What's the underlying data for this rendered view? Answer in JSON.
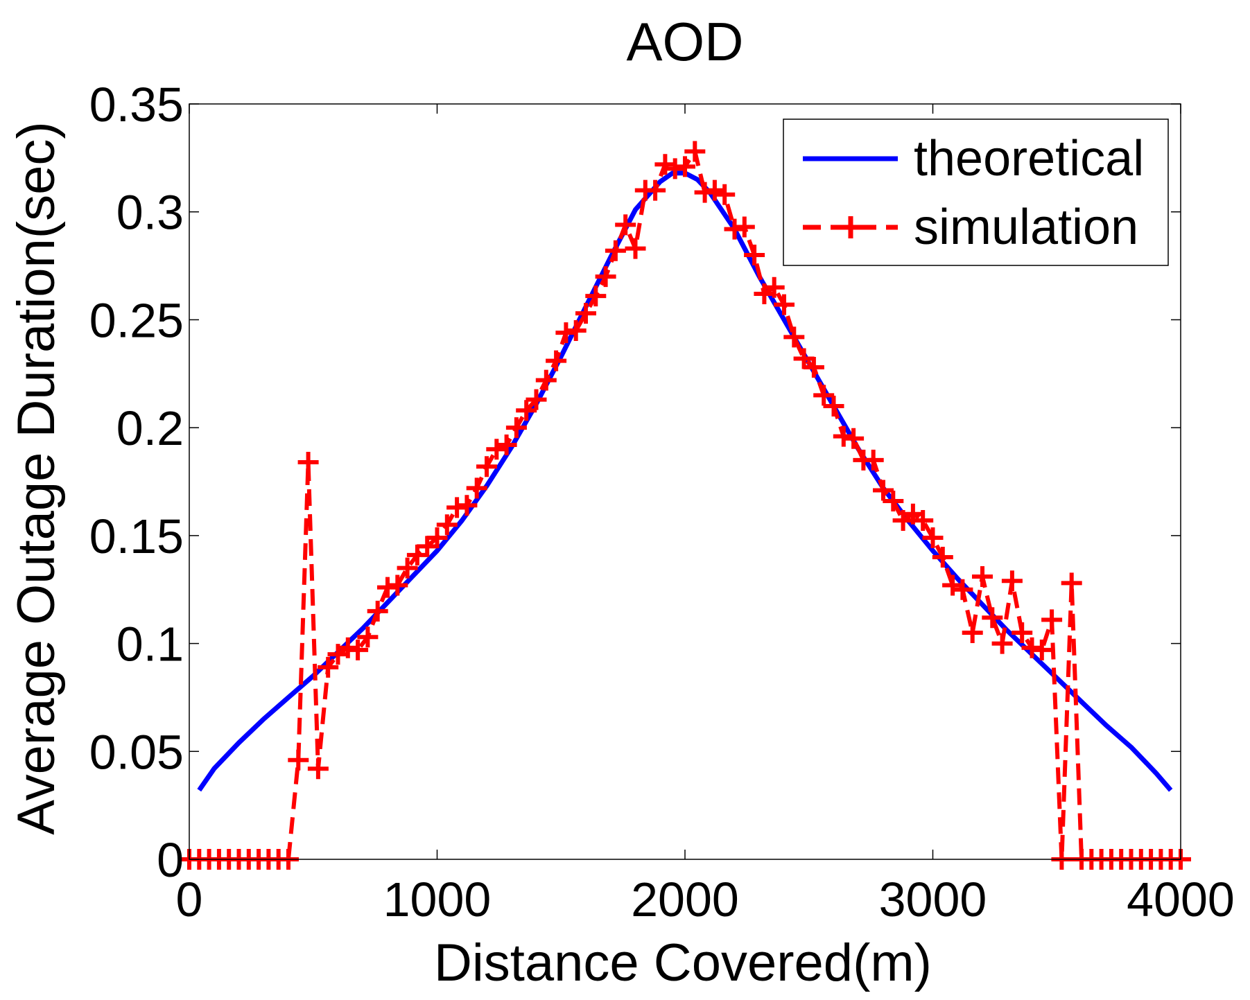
{
  "chart_data": {
    "type": "line",
    "title": "AOD",
    "xlabel": "Distance Covered(m)",
    "ylabel": "Average Outage Duration(sec)",
    "xlim": [
      0,
      4000
    ],
    "ylim": [
      0,
      0.35
    ],
    "x_ticks": [
      0,
      1000,
      2000,
      3000,
      4000
    ],
    "x_tick_labels": [
      "0",
      "1000",
      "2000",
      "3000",
      "4000"
    ],
    "y_ticks": [
      0,
      0.05,
      0.1,
      0.15,
      0.2,
      0.25,
      0.3,
      0.35
    ],
    "y_tick_labels": [
      "0",
      "0.05",
      "0.1",
      "0.15",
      "0.2",
      "0.25",
      "0.3",
      "0.35"
    ],
    "grid": false,
    "legend": {
      "position": "top-right"
    },
    "series": [
      {
        "name": "theoretical",
        "color": "#0000ff",
        "style": "solid",
        "marker": "none",
        "x": [
          40,
          100,
          200,
          300,
          400,
          500,
          600,
          700,
          800,
          900,
          1000,
          1100,
          1200,
          1300,
          1400,
          1500,
          1600,
          1700,
          1800,
          1900,
          1950,
          2000,
          2050,
          2100,
          2200,
          2300,
          2400,
          2500,
          2600,
          2700,
          2800,
          2900,
          3000,
          3100,
          3200,
          3300,
          3400,
          3500,
          3600,
          3700,
          3800,
          3850,
          3900,
          3960
        ],
        "y": [
          0.032,
          0.042,
          0.054,
          0.065,
          0.075,
          0.085,
          0.096,
          0.107,
          0.119,
          0.131,
          0.143,
          0.157,
          0.173,
          0.191,
          0.211,
          0.233,
          0.256,
          0.279,
          0.301,
          0.314,
          0.318,
          0.318,
          0.315,
          0.309,
          0.292,
          0.27,
          0.25,
          0.23,
          0.21,
          0.19,
          0.172,
          0.157,
          0.143,
          0.13,
          0.118,
          0.106,
          0.095,
          0.084,
          0.073,
          0.062,
          0.052,
          0.046,
          0.04,
          0.032
        ]
      },
      {
        "name": "simulation",
        "color": "#ff0000",
        "style": "dashed",
        "marker": "+",
        "x": [
          0,
          40,
          80,
          120,
          160,
          200,
          240,
          280,
          320,
          360,
          400,
          440,
          480,
          520,
          560,
          600,
          640,
          680,
          720,
          760,
          800,
          840,
          880,
          920,
          960,
          1000,
          1040,
          1080,
          1120,
          1160,
          1200,
          1240,
          1280,
          1320,
          1360,
          1400,
          1440,
          1480,
          1520,
          1560,
          1600,
          1640,
          1680,
          1720,
          1760,
          1800,
          1840,
          1880,
          1920,
          1960,
          2000,
          2040,
          2080,
          2120,
          2160,
          2200,
          2240,
          2280,
          2320,
          2360,
          2400,
          2440,
          2480,
          2520,
          2560,
          2600,
          2640,
          2680,
          2720,
          2760,
          2800,
          2840,
          2880,
          2920,
          2960,
          3000,
          3040,
          3080,
          3120,
          3160,
          3200,
          3240,
          3280,
          3320,
          3360,
          3400,
          3440,
          3480,
          3520,
          3560,
          3600,
          3640,
          3680,
          3720,
          3760,
          3800,
          3840,
          3880,
          3920,
          3960,
          4000
        ],
        "y": [
          0,
          0,
          0,
          0,
          0,
          0,
          0,
          0,
          0,
          0,
          0,
          0.046,
          0.184,
          0.042,
          0.089,
          0.095,
          0.098,
          0.097,
          0.103,
          0.115,
          0.126,
          0.127,
          0.135,
          0.141,
          0.145,
          0.149,
          0.155,
          0.163,
          0.164,
          0.172,
          0.182,
          0.19,
          0.192,
          0.2,
          0.208,
          0.213,
          0.222,
          0.231,
          0.244,
          0.245,
          0.253,
          0.261,
          0.27,
          0.282,
          0.294,
          0.283,
          0.31,
          0.31,
          0.322,
          0.32,
          0.321,
          0.328,
          0.309,
          0.31,
          0.308,
          0.292,
          0.293,
          0.28,
          0.262,
          0.265,
          0.257,
          0.242,
          0.232,
          0.228,
          0.215,
          0.21,
          0.196,
          0.195,
          0.185,
          0.185,
          0.171,
          0.166,
          0.157,
          0.16,
          0.157,
          0.149,
          0.14,
          0.127,
          0.125,
          0.105,
          0.131,
          0.112,
          0.1,
          0.129,
          0.105,
          0.098,
          0.097,
          0.111,
          0,
          0.128,
          0,
          0,
          0,
          0,
          0,
          0,
          0,
          0,
          0,
          0,
          0
        ]
      }
    ]
  }
}
